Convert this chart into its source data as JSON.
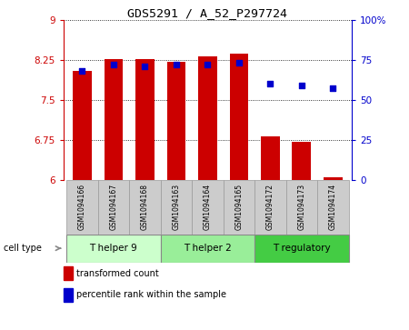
{
  "title": "GDS5291 / A_52_P297724",
  "samples": [
    "GSM1094166",
    "GSM1094167",
    "GSM1094168",
    "GSM1094163",
    "GSM1094164",
    "GSM1094165",
    "GSM1094172",
    "GSM1094173",
    "GSM1094174"
  ],
  "transformed_counts": [
    8.05,
    8.26,
    8.26,
    8.22,
    8.31,
    8.37,
    6.82,
    6.72,
    6.04
  ],
  "percentile_ranks": [
    68,
    72,
    71,
    72,
    72,
    73,
    60,
    59,
    57
  ],
  "ylim_left": [
    6,
    9
  ],
  "ylim_right": [
    0,
    100
  ],
  "yticks_left": [
    6,
    6.75,
    7.5,
    8.25,
    9
  ],
  "yticks_right": [
    0,
    25,
    50,
    75,
    100
  ],
  "ytick_labels_left": [
    "6",
    "6.75",
    "7.5",
    "8.25",
    "9"
  ],
  "ytick_labels_right": [
    "0",
    "25",
    "50",
    "75",
    "100%"
  ],
  "bar_color": "#cc0000",
  "dot_color": "#0000cc",
  "cell_type_groups": [
    {
      "label": "T helper 9",
      "indices": [
        0,
        1,
        2
      ],
      "color": "#ccffcc"
    },
    {
      "label": "T helper 2",
      "indices": [
        3,
        4,
        5
      ],
      "color": "#99ee99"
    },
    {
      "label": "T regulatory",
      "indices": [
        6,
        7,
        8
      ],
      "color": "#44cc44"
    }
  ],
  "bg_color": "#ffffff",
  "bar_width": 0.6,
  "left_axis_color": "#cc0000",
  "right_axis_color": "#0000cc",
  "sample_box_color": "#cccccc",
  "sample_box_edge": "#999999"
}
